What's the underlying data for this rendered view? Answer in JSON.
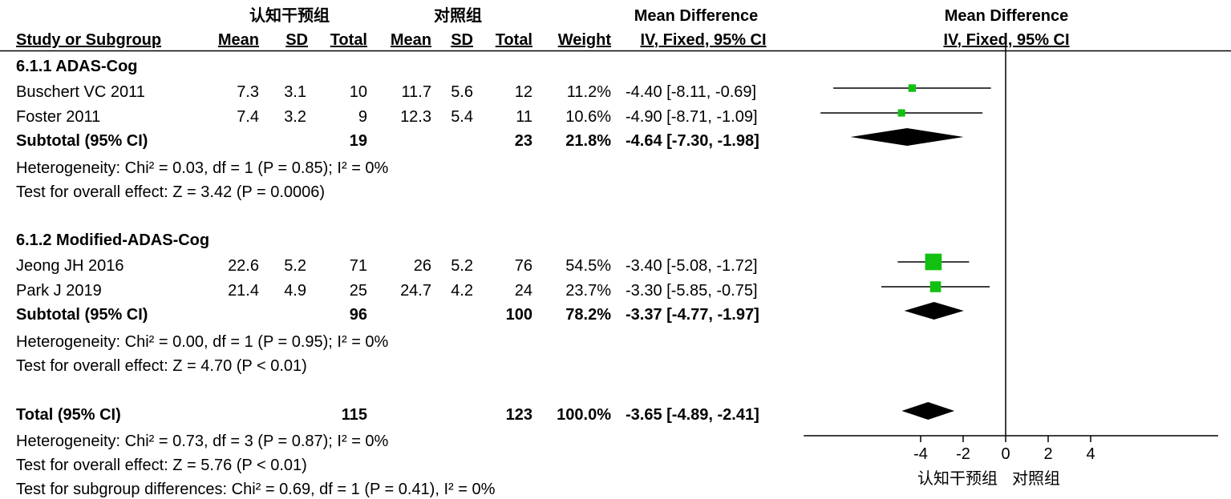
{
  "header": {
    "group1": "认知干预组",
    "group2": "对照组",
    "md_title": "Mean Difference",
    "md_method": "IV, Fixed, 95% CI",
    "plot_title": "Mean Difference",
    "plot_method": "IV, Fixed, 95% CI",
    "col_study": "Study or Subgroup",
    "col_mean1": "Mean",
    "col_sd1": "SD",
    "col_total1": "Total",
    "col_mean2": "Mean",
    "col_sd2": "SD",
    "col_total2": "Total",
    "col_weight": "Weight"
  },
  "subgroups": [
    {
      "title": "6.1.1 ADAS-Cog",
      "studies": [
        {
          "name": "Buschert VC 2011",
          "m1": "7.3",
          "sd1": "3.1",
          "n1": "10",
          "m2": "11.7",
          "sd2": "5.6",
          "n2": "12",
          "weight": "11.2%",
          "ci_text": "-4.40 [-8.11, -0.69]"
        },
        {
          "name": "Foster 2011",
          "m1": "7.4",
          "sd1": "3.2",
          "n1": "9",
          "m2": "12.3",
          "sd2": "5.4",
          "n2": "11",
          "weight": "10.6%",
          "ci_text": "-4.90 [-8.71, -1.09]"
        }
      ],
      "subtotal": {
        "label": "Subtotal (95% CI)",
        "n1": "19",
        "n2": "23",
        "weight": "21.8%",
        "ci_text": "-4.64 [-7.30, -1.98]"
      },
      "heterogeneity": "Heterogeneity: Chi² = 0.03, df = 1 (P = 0.85); I² = 0%",
      "overall": "Test for overall effect: Z = 3.42 (P = 0.0006)"
    },
    {
      "title": "6.1.2 Modified-ADAS-Cog",
      "studies": [
        {
          "name": "Jeong JH 2016",
          "m1": "22.6",
          "sd1": "5.2",
          "n1": "71",
          "m2": "26",
          "sd2": "5.2",
          "n2": "76",
          "weight": "54.5%",
          "ci_text": "-3.40 [-5.08, -1.72]"
        },
        {
          "name": "Park J 2019",
          "m1": "21.4",
          "sd1": "4.9",
          "n1": "25",
          "m2": "24.7",
          "sd2": "4.2",
          "n2": "24",
          "weight": "23.7%",
          "ci_text": "-3.30 [-5.85, -0.75]"
        }
      ],
      "subtotal": {
        "label": "Subtotal (95% CI)",
        "n1": "96",
        "n2": "100",
        "weight": "78.2%",
        "ci_text": "-3.37 [-4.77, -1.97]"
      },
      "heterogeneity": "Heterogeneity: Chi² = 0.00, df = 1 (P = 0.95); I² = 0%",
      "overall": "Test for overall effect: Z = 4.70 (P < 0.01)"
    }
  ],
  "total": {
    "label": "Total (95% CI)",
    "n1": "115",
    "n2": "123",
    "weight": "100.0%",
    "ci_text": "-3.65 [-4.89, -2.41]",
    "heterogeneity": "Heterogeneity: Chi² = 0.73, df = 3 (P = 0.87); I² = 0%",
    "overall": "Test for overall effect: Z = 5.76 (P < 0.01)",
    "subgroup_diff": "Test for subgroup differences: Chi² = 0.69, df = 1 (P = 0.41), I² = 0%"
  },
  "axis": {
    "left_label": "认知干预组",
    "right_label": "对照组"
  },
  "chart_data": {
    "type": "forest",
    "title": "Mean Difference",
    "subtitle": "IV, Fixed, 95% CI",
    "xlim": [
      -9.5,
      10
    ],
    "ticks": [
      -4,
      -2,
      0,
      2,
      4
    ],
    "tick_labels": [
      "-4",
      "-2",
      "0",
      "2",
      "4"
    ],
    "null_line": 0,
    "studies": [
      {
        "name": "Buschert VC 2011",
        "md": -4.4,
        "lo": -8.11,
        "hi": -0.69,
        "weight": 11.2
      },
      {
        "name": "Foster 2011",
        "md": -4.9,
        "lo": -8.71,
        "hi": -1.09,
        "weight": 10.6
      },
      {
        "name": "Jeong JH 2016",
        "md": -3.4,
        "lo": -5.08,
        "hi": -1.72,
        "weight": 54.5
      },
      {
        "name": "Park J 2019",
        "md": -3.3,
        "lo": -5.85,
        "hi": -0.75,
        "weight": 23.7
      }
    ],
    "diamonds": [
      {
        "name": "Subtotal 6.1.1 ADAS-Cog",
        "md": -4.64,
        "lo": -7.3,
        "hi": -1.98
      },
      {
        "name": "Subtotal 6.1.2 Modified-ADAS-Cog",
        "md": -3.37,
        "lo": -4.77,
        "hi": -1.97
      },
      {
        "name": "Total",
        "md": -3.65,
        "lo": -4.89,
        "hi": -2.41
      }
    ],
    "colors": {
      "square": "#12c012",
      "line": "#000000",
      "diamond": "#000000"
    }
  }
}
